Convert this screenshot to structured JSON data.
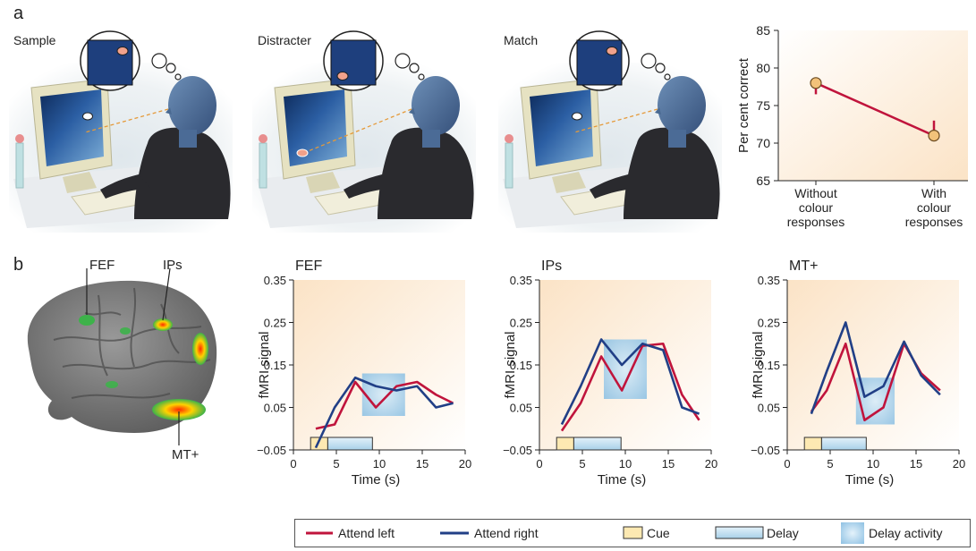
{
  "panel_a": {
    "letter": "a",
    "scenes": [
      {
        "label": "Sample",
        "dot": "top-right"
      },
      {
        "label": "Distracter",
        "dot": "bottom-left"
      },
      {
        "label": "Match",
        "dot": "top-right"
      }
    ]
  },
  "panel_b": {
    "letter": "b",
    "brain_labels": {
      "fef": "FEF",
      "ips": "IPs",
      "mt": "MT+"
    }
  },
  "legend": {
    "attend_left": "Attend left",
    "attend_right": "Attend right",
    "cue": "Cue",
    "delay": "Delay",
    "delay_activity": "Delay activity"
  },
  "colors": {
    "attend_left": "#c0143c",
    "attend_right": "#213f86",
    "cue_fill": "#fde9b2",
    "delay_fill": "#a8d0e8",
    "background_gradient": "#fbe3c6",
    "screen_blue": "#1e3f7d",
    "accuracy_marker": "#f2c27a"
  },
  "chart_data": [
    {
      "type": "line",
      "id": "accuracy",
      "title": "",
      "xlabel": "",
      "ylabel": "Per cent correct",
      "categories": [
        "Without colour responses",
        "With colour responses"
      ],
      "category_lines": [
        [
          "Without",
          "colour",
          "responses"
        ],
        [
          "With",
          "colour",
          "responses"
        ]
      ],
      "values": [
        78,
        71
      ],
      "errors": [
        1.5,
        2
      ],
      "ylim": [
        65,
        85
      ],
      "yticks": [
        "65",
        "70",
        "75",
        "80",
        "85"
      ]
    },
    {
      "type": "line",
      "title": "FEF",
      "xlabel": "Time (s)",
      "ylabel": "fMRI signal",
      "xlim": [
        0,
        20
      ],
      "ylim": [
        -0.05,
        0.35
      ],
      "xticks": [
        "0",
        "5",
        "10",
        "15",
        "20"
      ],
      "yticks": [
        "−0.05",
        "0.05",
        "0.15",
        "0.25",
        "0.35"
      ],
      "series": [
        {
          "name": "Attend left",
          "x": [
            2.6,
            4.8,
            7.2,
            9.6,
            12,
            14.4,
            16.6,
            18.6
          ],
          "y": [
            0,
            0.01,
            0.11,
            0.05,
            0.1,
            0.11,
            0.08,
            0.06
          ]
        },
        {
          "name": "Attend right",
          "x": [
            2.6,
            4.8,
            7.2,
            9.6,
            12,
            14.4,
            16.6,
            18.6
          ],
          "y": [
            -0.045,
            0.05,
            0.12,
            0.1,
            0.09,
            0.1,
            0.05,
            0.06
          ]
        }
      ],
      "cue": [
        2,
        4
      ],
      "delay": [
        4,
        9.2
      ],
      "delay_activity": {
        "x": [
          8,
          13
        ],
        "y": [
          0.03,
          0.13
        ]
      }
    },
    {
      "type": "line",
      "title": "IPs",
      "xlabel": "Time (s)",
      "ylabel": "fMRI signal",
      "xlim": [
        0,
        20
      ],
      "ylim": [
        -0.05,
        0.35
      ],
      "xticks": [
        "0",
        "5",
        "10",
        "15",
        "20"
      ],
      "yticks": [
        "−0.05",
        "0.05",
        "0.15",
        "0.25",
        "0.35"
      ],
      "series": [
        {
          "name": "Attend left",
          "x": [
            2.6,
            4.8,
            7.2,
            9.6,
            12,
            14.4,
            16.6,
            18.6
          ],
          "y": [
            -0.005,
            0.06,
            0.17,
            0.09,
            0.195,
            0.2,
            0.08,
            0.02
          ]
        },
        {
          "name": "Attend right",
          "x": [
            2.6,
            4.8,
            7.2,
            9.6,
            12,
            14.4,
            16.6,
            18.6
          ],
          "y": [
            0.01,
            0.1,
            0.21,
            0.15,
            0.2,
            0.185,
            0.05,
            0.035
          ]
        }
      ],
      "cue": [
        2,
        4
      ],
      "delay": [
        4,
        9.5
      ],
      "delay_activity": {
        "x": [
          7.5,
          12.5
        ],
        "y": [
          0.07,
          0.21
        ]
      }
    },
    {
      "type": "line",
      "title": "MT+",
      "xlabel": "Time (s)",
      "ylabel": "fMRI signal",
      "xlim": [
        0,
        20
      ],
      "ylim": [
        -0.05,
        0.35
      ],
      "xticks": [
        "0",
        "5",
        "10",
        "15",
        "20"
      ],
      "yticks": [
        "−0.05",
        "0.05",
        "0.15",
        "0.25",
        "0.35"
      ],
      "series": [
        {
          "name": "Attend left",
          "x": [
            2.8,
            4.6,
            6.8,
            9,
            11.2,
            13.6,
            15.6,
            17.8
          ],
          "y": [
            0.04,
            0.09,
            0.2,
            0.02,
            0.05,
            0.2,
            0.13,
            0.09
          ]
        },
        {
          "name": "Attend right",
          "x": [
            2.8,
            4.6,
            6.8,
            9,
            11.2,
            13.6,
            15.6,
            17.8
          ],
          "y": [
            0.035,
            0.135,
            0.25,
            0.075,
            0.1,
            0.205,
            0.125,
            0.08
          ]
        }
      ],
      "cue": [
        2,
        4
      ],
      "delay": [
        4,
        9.2
      ],
      "delay_activity": {
        "x": [
          8,
          12.5
        ],
        "y": [
          0.01,
          0.12
        ]
      }
    }
  ]
}
